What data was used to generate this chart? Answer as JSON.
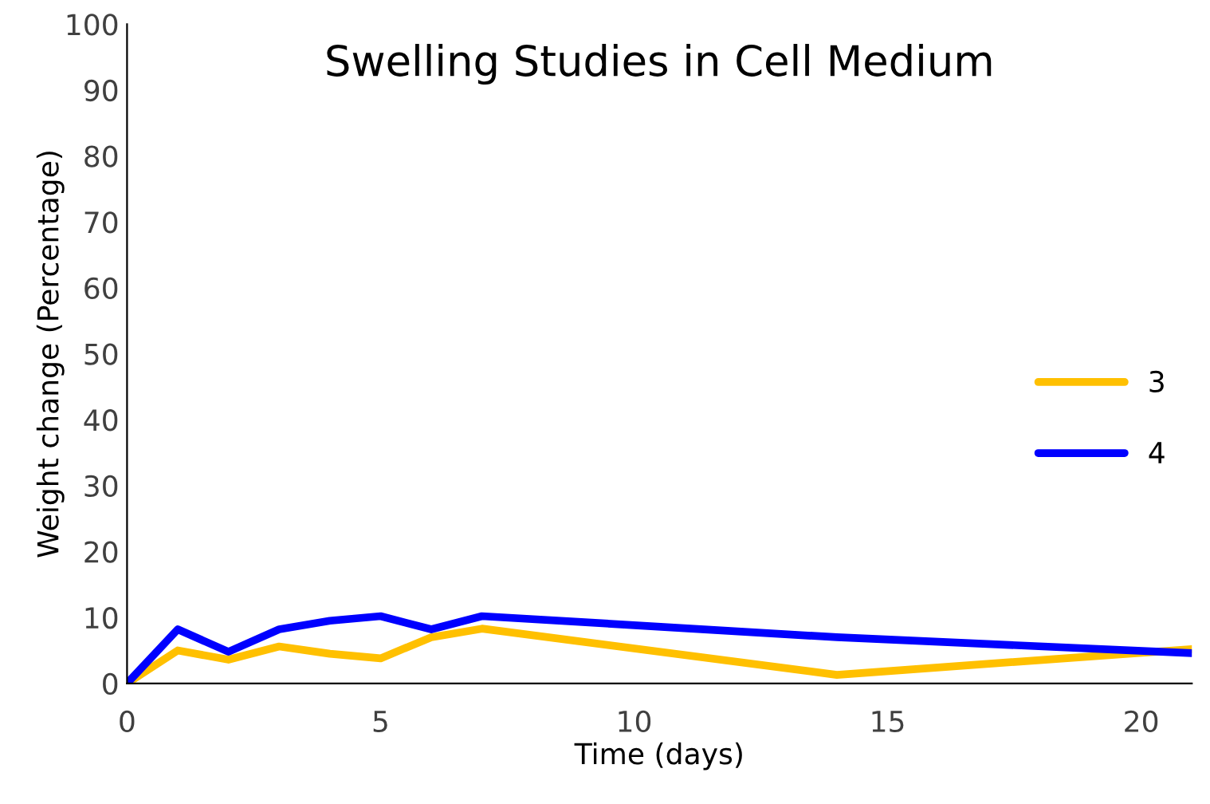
{
  "chart_data": {
    "type": "line",
    "title": "Swelling Studies in Cell Medium",
    "xlabel": "Time (days)",
    "ylabel": "Weight change (Percentage)",
    "x": [
      0,
      1,
      2,
      3,
      4,
      5,
      6,
      7,
      14,
      21
    ],
    "series": [
      {
        "name": "3",
        "color": "#ffc000",
        "values": [
          0,
          5,
          3.6,
          5.6,
          4.5,
          3.8,
          7,
          8.3,
          1.3,
          5.2
        ]
      },
      {
        "name": "4",
        "color": "#0000ff",
        "values": [
          0,
          8.2,
          4.8,
          8.2,
          9.5,
          10.2,
          8.2,
          10.2,
          7,
          4.6
        ]
      }
    ],
    "xlim": [
      0,
      21
    ],
    "xticks": [
      0,
      5,
      10,
      15,
      20
    ],
    "ylim": [
      0,
      100
    ],
    "yticks": [
      0,
      10,
      20,
      30,
      40,
      50,
      60,
      70,
      80,
      90,
      100
    ],
    "grid": false,
    "legend": "right",
    "marker": "none",
    "line_style": "solid"
  }
}
